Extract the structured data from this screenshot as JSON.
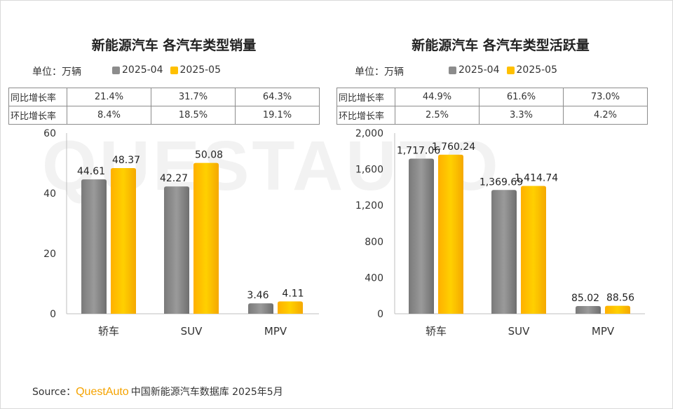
{
  "watermark": "QUESTAUTO",
  "legend": [
    "2025-04",
    "2025-05"
  ],
  "colors": {
    "s2025_04": "#8c8c8c",
    "s2025_05": "#ffc000"
  },
  "categories": [
    "轿车",
    "SUV",
    "MPV"
  ],
  "left": {
    "title": "新能源汽车 各汽车类型销量",
    "unit": "单位：万辆",
    "table": {
      "rows": [
        {
          "label": "同比增长率",
          "values": [
            "21.4%",
            "31.7%",
            "64.3%"
          ]
        },
        {
          "label": "环比增长率",
          "values": [
            "8.4%",
            "18.5%",
            "19.1%"
          ]
        }
      ]
    }
  },
  "right": {
    "title": "新能源汽车 各汽车类型活跃量",
    "unit": "单位：万辆",
    "table": {
      "rows": [
        {
          "label": "同比增长率",
          "values": [
            "44.9%",
            "61.6%",
            "73.0%"
          ]
        },
        {
          "label": "环比增长率",
          "values": [
            "2.5%",
            "3.3%",
            "4.2%"
          ]
        }
      ]
    }
  },
  "chart_data": [
    {
      "type": "bar",
      "title": "新能源汽车 各汽车类型销量",
      "categories": [
        "轿车",
        "SUV",
        "MPV"
      ],
      "series": [
        {
          "name": "2025-04",
          "values": [
            44.61,
            42.27,
            3.46
          ],
          "labels": [
            "44.61",
            "42.27",
            "3.46"
          ]
        },
        {
          "name": "2025-05",
          "values": [
            48.37,
            50.08,
            4.11
          ],
          "labels": [
            "48.37",
            "50.08",
            "4.11"
          ]
        }
      ],
      "ylim": [
        0,
        60
      ],
      "yticks": [
        0,
        20,
        40,
        60
      ],
      "ytick_labels": [
        "0",
        "20",
        "40",
        "60"
      ],
      "grid": false
    },
    {
      "type": "bar",
      "title": "新能源汽车 各汽车类型活跃量",
      "categories": [
        "轿车",
        "SUV",
        "MPV"
      ],
      "series": [
        {
          "name": "2025-04",
          "values": [
            1717.06,
            1369.69,
            85.02
          ],
          "labels": [
            "1,717.06",
            "1,369.69",
            "85.02"
          ]
        },
        {
          "name": "2025-05",
          "values": [
            1760.24,
            1414.74,
            88.56
          ],
          "labels": [
            "1,760.24",
            "1,414.74",
            "88.56"
          ]
        }
      ],
      "ylim": [
        0,
        2000
      ],
      "yticks": [
        0,
        400,
        800,
        1200,
        1600,
        2000
      ],
      "ytick_labels": [
        "0",
        "400",
        "800",
        "1,200",
        "1,600",
        "2,000"
      ],
      "grid": false
    }
  ],
  "source": {
    "prefix": "Source：",
    "brand": "QuestAuto",
    "text": "中国新能源汽车数据库 2025年5月"
  }
}
